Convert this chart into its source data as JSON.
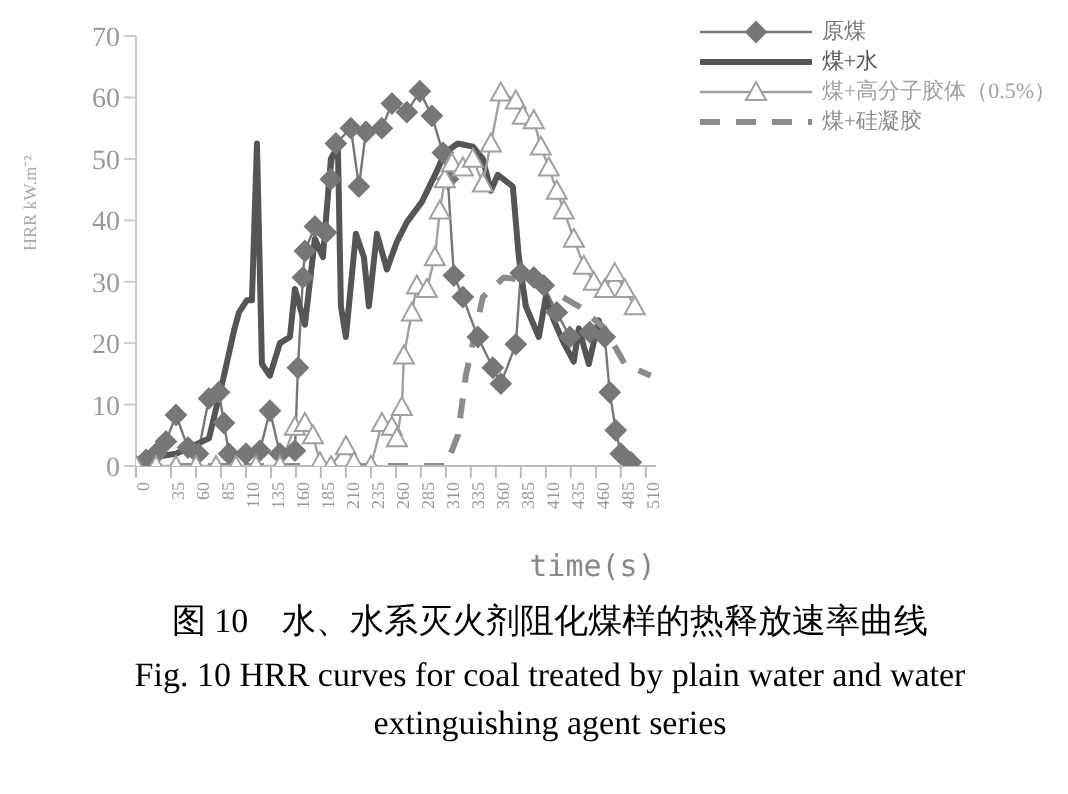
{
  "chart_data": {
    "type": "line",
    "title": "图 10　水、水系灭火剂阻化煤样的热释放速率曲线",
    "subtitle": "Fig. 10 HRR curves for coal treated by plain water and water extinguishing agent series",
    "xlabel": "time(s)",
    "ylabel": "HRR kW.m⁻²",
    "xlim": [
      0,
      520
    ],
    "xticks": [
      0,
      35,
      60,
      85,
      110,
      135,
      160,
      185,
      210,
      235,
      260,
      285,
      310,
      335,
      360,
      385,
      410,
      435,
      460,
      485,
      510
    ],
    "ylim": [
      0,
      70
    ],
    "yticks": [
      0,
      10,
      20,
      30,
      40,
      50,
      60,
      70
    ],
    "legend": "top right",
    "series": [
      {
        "name": "原煤",
        "color": "#777777",
        "marker": "diamond",
        "line_style": "solid",
        "x": [
          0,
          10,
          20,
          30,
          40,
          52,
          62,
          73,
          83,
          88,
          93,
          110,
          124,
          134,
          144,
          159,
          162,
          167,
          169,
          179,
          190,
          195,
          200,
          215,
          223,
          230,
          246,
          256,
          271,
          284,
          296,
          307,
          312,
          318,
          327,
          342,
          357,
          365,
          380,
          385,
          398,
          408,
          421,
          434,
          454,
          469,
          474,
          480,
          485,
          495
        ],
        "values": [
          0,
          1,
          2,
          4,
          8.3,
          3,
          2,
          11,
          12,
          7,
          2,
          2,
          2.5,
          9,
          2,
          2.5,
          16,
          30.7,
          35,
          39,
          38,
          46.7,
          52.5,
          55,
          45.5,
          54.4,
          55,
          59,
          57.6,
          61,
          57,
          51,
          46.7,
          31,
          27.5,
          21,
          16,
          13.4,
          19.8,
          31.4,
          30.7,
          29.4,
          25,
          21,
          21.8,
          21,
          12,
          5.8,
          2,
          0.6
        ]
      },
      {
        "name": "煤+水",
        "color": "#555555",
        "marker": "none",
        "line_style": "solid",
        "x": [
          0,
          40,
          73,
          88,
          98,
          103,
          111,
          116,
          121,
          126,
          134,
          144,
          154,
          159,
          169,
          179,
          187,
          195,
          202,
          205,
          210,
          220,
          228,
          233,
          241,
          251,
          261,
          271,
          286,
          301,
          309,
          322,
          337,
          347,
          355,
          362,
          377,
          383,
          390,
          403,
          410,
          418,
          428,
          438,
          443,
          453,
          463,
          469
        ],
        "values": [
          1,
          2,
          4.5,
          14.7,
          22,
          25,
          27,
          27,
          52.5,
          16.6,
          14.7,
          20,
          21,
          28.8,
          23,
          37,
          34,
          50,
          52,
          26,
          21,
          37.8,
          34,
          26,
          37.8,
          32,
          36.5,
          39.7,
          43,
          48,
          51,
          52.5,
          52,
          50,
          44.8,
          47.4,
          45.5,
          34,
          26,
          21,
          27.5,
          23.7,
          20,
          17,
          22.4,
          16.6,
          23.7,
          20
        ]
      },
      {
        "name": "煤+高分子胶体（0.5%）",
        "color": "#a0a0a0",
        "marker": "triangle",
        "line_style": "solid",
        "x": [
          0,
          20,
          40,
          60,
          80,
          100,
          120,
          144,
          159,
          169,
          177,
          184,
          195,
          210,
          218,
          235,
          246,
          256,
          261,
          266,
          268,
          276,
          281,
          291,
          299,
          304,
          309,
          316,
          327,
          337,
          347,
          355,
          365,
          380,
          387,
          398,
          405,
          413,
          421,
          428,
          438,
          448,
          458,
          469,
          479,
          489,
          499
        ],
        "values": [
          0,
          0,
          0,
          0,
          0,
          0,
          0,
          0,
          6.4,
          7,
          5,
          0.6,
          0,
          3.2,
          0.6,
          0,
          7,
          6.4,
          4.5,
          9.6,
          18,
          25,
          29.4,
          28.8,
          34,
          41.6,
          46.7,
          49.3,
          48.6,
          50,
          46,
          52.5,
          60.8,
          59.5,
          57,
          56.3,
          52,
          48.6,
          44.8,
          41.6,
          37,
          32.6,
          30,
          28.8,
          31.4,
          28.8,
          26
        ]
      },
      {
        "name": "煤+硅凝胶",
        "color": "#8c8c8c",
        "marker": "none",
        "line_style": "dashed",
        "x": [
          0,
          250,
          310,
          322,
          330,
          347,
          368,
          400,
          443,
          469,
          489,
          515
        ],
        "values": [
          0,
          0,
          0,
          5,
          14.7,
          27.5,
          30.7,
          30,
          26,
          22.4,
          16.6,
          14.7
        ]
      }
    ]
  }
}
